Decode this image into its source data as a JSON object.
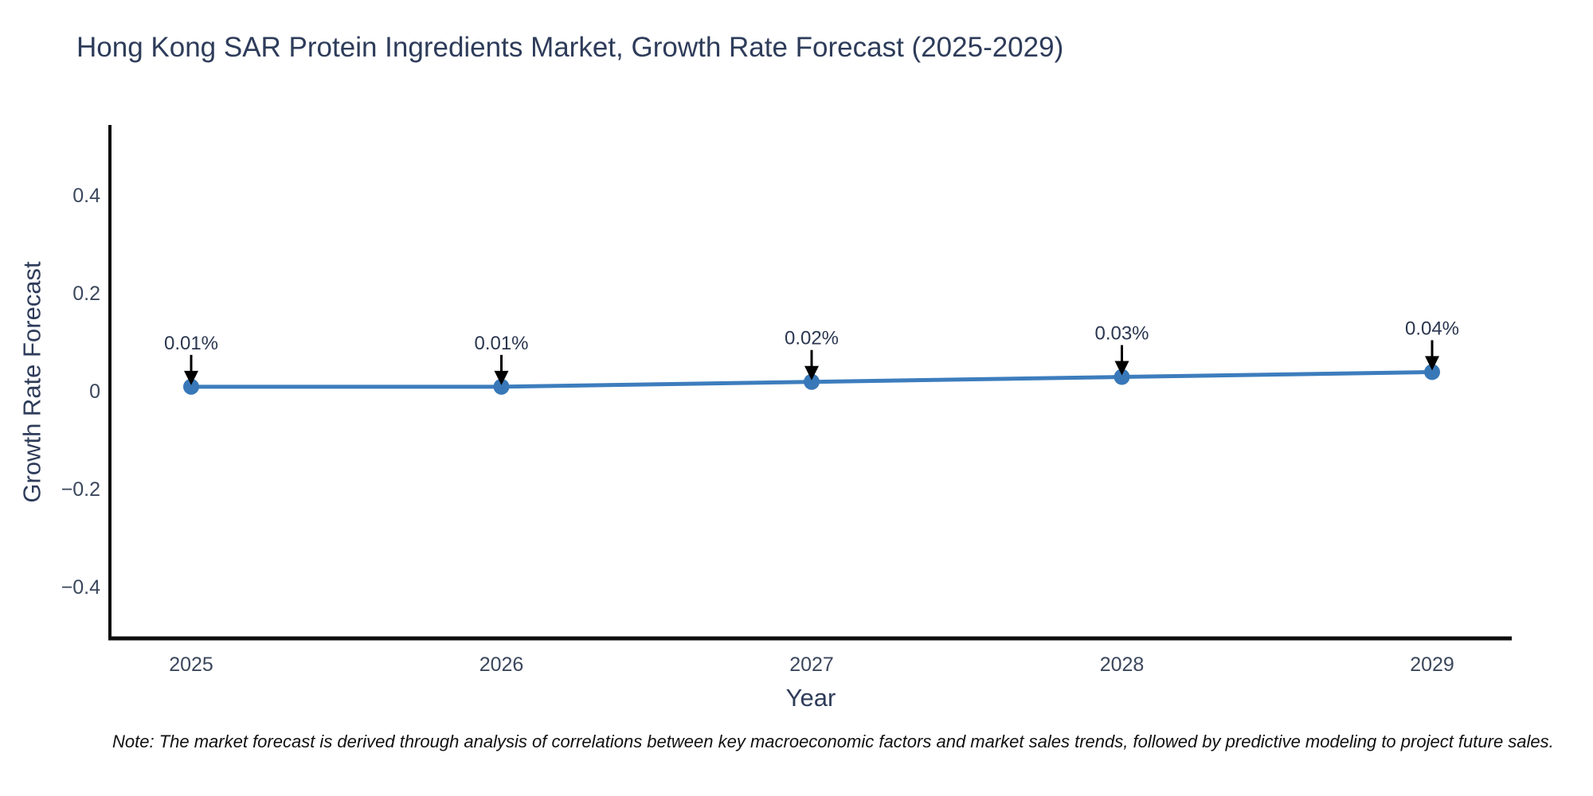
{
  "chart_data": {
    "type": "line",
    "title": "Hong Kong SAR Protein Ingredients Market, Growth Rate Forecast (2025-2029)",
    "xlabel": "Year",
    "ylabel": "Growth Rate Forecast",
    "categories": [
      "2025",
      "2026",
      "2027",
      "2028",
      "2029"
    ],
    "x": [
      2025,
      2026,
      2027,
      2028,
      2029
    ],
    "values": [
      0.01,
      0.01,
      0.02,
      0.03,
      0.04
    ],
    "point_labels": [
      "0.01%",
      "0.01%",
      "0.02%",
      "0.03%",
      "0.04%"
    ],
    "series_name": "Growth Rate Forecast",
    "yticks": [
      0.4,
      0.2,
      0,
      -0.2,
      -0.4
    ],
    "ytick_labels": [
      "0.4",
      "0.2",
      "0",
      "−0.2",
      "−0.4"
    ],
    "ylim": [
      -0.51,
      0.54
    ],
    "grid": false,
    "legend": "none",
    "annotations_arrow": "down-arrow-to-point",
    "colors": {
      "line": "#3d7dbd",
      "marker": "#3878b8",
      "axis": "#0d0d0d",
      "axis_title_text": "#2e3c5a",
      "tick_text": "#3b475c",
      "annotation_text": "#2b3750",
      "annotation_arrow": "#000000",
      "background": "#ffffff"
    }
  },
  "note": {
    "text": "Note: The market forecast is derived through analysis of correlations between key macroeconomic factors and market sales trends, followed by predictive modeling to project future sales."
  }
}
